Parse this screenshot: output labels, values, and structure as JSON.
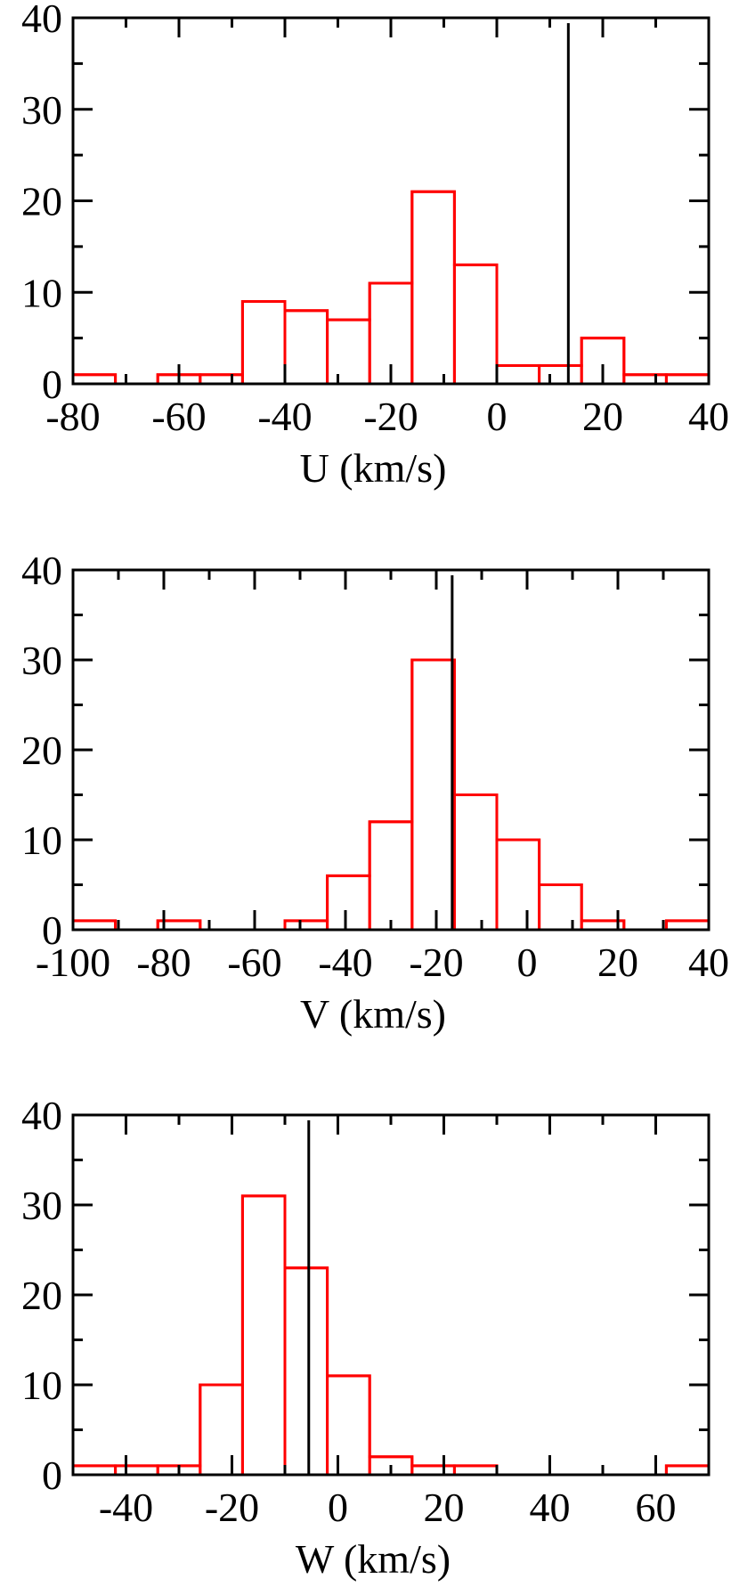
{
  "chart_data": [
    {
      "type": "histogram",
      "xlabel": "U (km/s)",
      "ylabel": "",
      "xlim": [
        -80,
        40
      ],
      "ylim": [
        0,
        40
      ],
      "xticks": [
        -80,
        -60,
        -40,
        -20,
        0,
        20,
        40
      ],
      "yticks": [
        0,
        10,
        20,
        30,
        40
      ],
      "bin_width": 8,
      "bins": [
        {
          "x0": -80,
          "x1": -72,
          "count": 1
        },
        {
          "x0": -72,
          "x1": -64,
          "count": 0
        },
        {
          "x0": -64,
          "x1": -56,
          "count": 1
        },
        {
          "x0": -56,
          "x1": -48,
          "count": 1
        },
        {
          "x0": -48,
          "x1": -40,
          "count": 9
        },
        {
          "x0": -40,
          "x1": -32,
          "count": 8
        },
        {
          "x0": -32,
          "x1": -24,
          "count": 7
        },
        {
          "x0": -24,
          "x1": -16,
          "count": 11
        },
        {
          "x0": -16,
          "x1": -8,
          "count": 21
        },
        {
          "x0": -8,
          "x1": 0,
          "count": 13
        },
        {
          "x0": 0,
          "x1": 8,
          "count": 2
        },
        {
          "x0": 8,
          "x1": 16,
          "count": 2
        },
        {
          "x0": 16,
          "x1": 24,
          "count": 5
        },
        {
          "x0": 24,
          "x1": 32,
          "count": 1
        },
        {
          "x0": 32,
          "x1": 40,
          "count": 1
        }
      ],
      "reference_line": 13.5,
      "bar_color": "#ff0000",
      "line_color": "#000000"
    },
    {
      "type": "histogram",
      "xlabel": "V (km/s)",
      "ylabel": "",
      "xlim": [
        -100,
        40
      ],
      "ylim": [
        0,
        40
      ],
      "xticks": [
        -100,
        -80,
        -60,
        -40,
        -20,
        0,
        20,
        40
      ],
      "yticks": [
        0,
        10,
        20,
        30,
        40
      ],
      "bin_width": 9.333,
      "bins": [
        {
          "x0": -100,
          "x1": -90.67,
          "count": 1
        },
        {
          "x0": -90.67,
          "x1": -81.33,
          "count": 0
        },
        {
          "x0": -81.33,
          "x1": -72,
          "count": 1
        },
        {
          "x0": -72,
          "x1": -62.67,
          "count": 0
        },
        {
          "x0": -62.67,
          "x1": -53.33,
          "count": 0
        },
        {
          "x0": -53.33,
          "x1": -44,
          "count": 1
        },
        {
          "x0": -44,
          "x1": -34.67,
          "count": 6
        },
        {
          "x0": -34.67,
          "x1": -25.33,
          "count": 12
        },
        {
          "x0": -25.33,
          "x1": -16,
          "count": 30
        },
        {
          "x0": -16,
          "x1": -6.67,
          "count": 15
        },
        {
          "x0": -6.67,
          "x1": 2.67,
          "count": 10
        },
        {
          "x0": 2.67,
          "x1": 12,
          "count": 5
        },
        {
          "x0": 12,
          "x1": 21.33,
          "count": 1
        },
        {
          "x0": 21.33,
          "x1": 30.67,
          "count": 0
        },
        {
          "x0": 30.67,
          "x1": 40,
          "count": 1
        }
      ],
      "reference_line": -16.5,
      "bar_color": "#ff0000",
      "line_color": "#000000"
    },
    {
      "type": "histogram",
      "xlabel": "W (km/s)",
      "ylabel": "",
      "xlim": [
        -50,
        70
      ],
      "ylim": [
        0,
        40
      ],
      "xticks": [
        -40,
        -20,
        0,
        20,
        40,
        60
      ],
      "yticks": [
        0,
        10,
        20,
        30,
        40
      ],
      "bin_width": 8,
      "bins": [
        {
          "x0": -50,
          "x1": -42,
          "count": 1
        },
        {
          "x0": -42,
          "x1": -34,
          "count": 1
        },
        {
          "x0": -34,
          "x1": -26,
          "count": 1
        },
        {
          "x0": -26,
          "x1": -18,
          "count": 10
        },
        {
          "x0": -18,
          "x1": -10,
          "count": 31
        },
        {
          "x0": -10,
          "x1": -2,
          "count": 23
        },
        {
          "x0": -2,
          "x1": 6,
          "count": 11
        },
        {
          "x0": 6,
          "x1": 14,
          "count": 2
        },
        {
          "x0": 14,
          "x1": 22,
          "count": 1
        },
        {
          "x0": 22,
          "x1": 30,
          "count": 1
        },
        {
          "x0": 30,
          "x1": 38,
          "count": 0
        },
        {
          "x0": 38,
          "x1": 46,
          "count": 0
        },
        {
          "x0": 46,
          "x1": 54,
          "count": 0
        },
        {
          "x0": 54,
          "x1": 62,
          "count": 0
        },
        {
          "x0": 62,
          "x1": 70,
          "count": 1
        }
      ],
      "reference_line": -5.5,
      "bar_color": "#ff0000",
      "line_color": "#000000"
    }
  ]
}
